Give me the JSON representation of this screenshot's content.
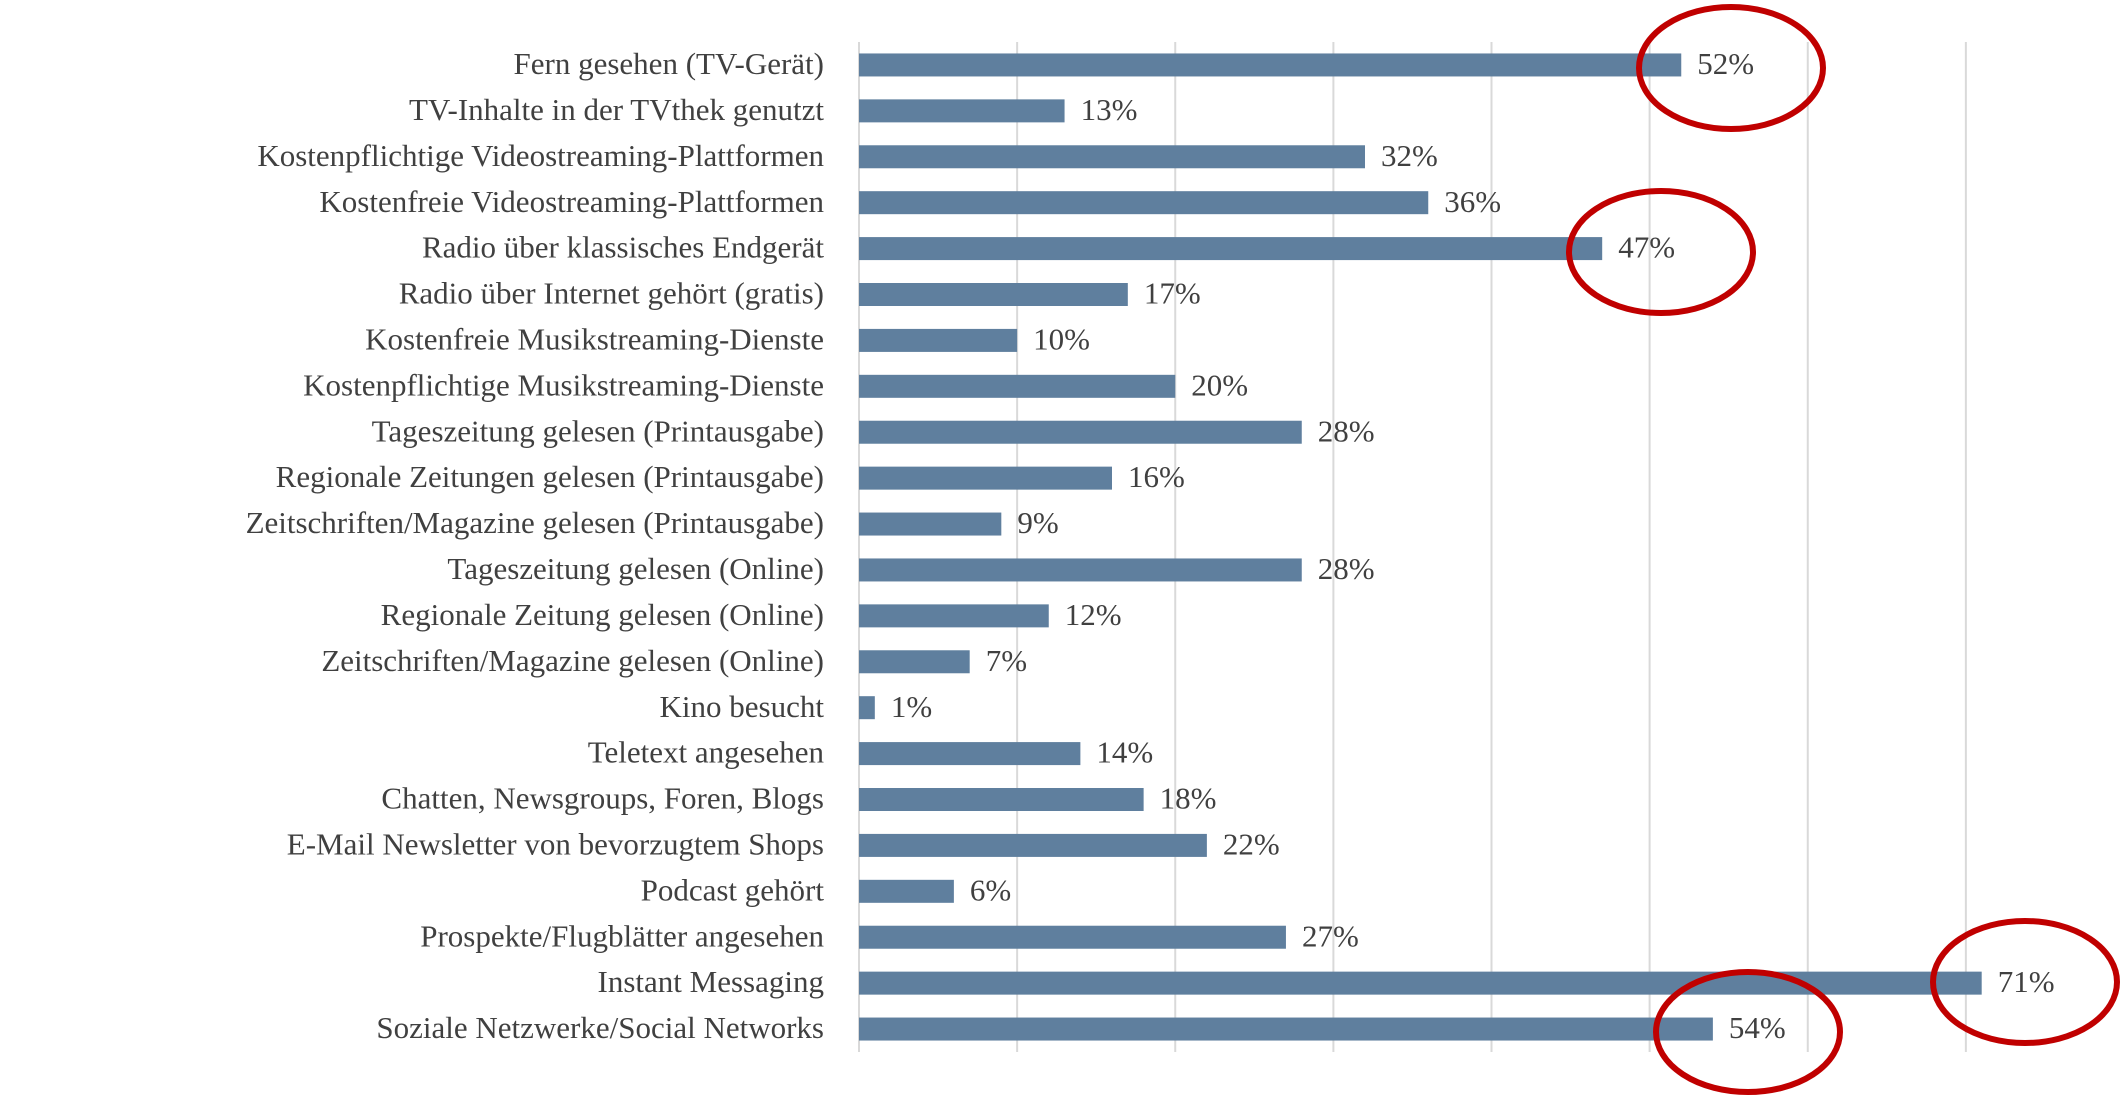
{
  "chart_data": {
    "type": "barh",
    "categories": [
      "Fern gesehen (TV-Gerät)",
      "TV-Inhalte in der TVthek genutzt",
      "Kostenpflichtige Videostreaming-Plattformen",
      "Kostenfreie Videostreaming-Plattformen",
      "Radio über klassisches Endgerät",
      "Radio über Internet gehört (gratis)",
      "Kostenfreie Musikstreaming-Dienste",
      "Kostenpflichtige Musikstreaming-Dienste",
      "Tageszeitung gelesen (Printausgabe)",
      "Regionale Zeitungen gelesen (Printausgabe)",
      "Zeitschriften/Magazine gelesen (Printausgabe)",
      "Tageszeitung gelesen (Online)",
      "Regionale Zeitung gelesen (Online)",
      "Zeitschriften/Magazine gelesen (Online)",
      "Kino besucht",
      "Teletext angesehen",
      "Chatten, Newsgroups, Foren, Blogs",
      "E-Mail Newsletter von bevorzugtem Shops",
      "Podcast gehört",
      "Prospekte/Flugblätter angesehen",
      "Instant Messaging",
      "Soziale Netzwerke/Social Networks"
    ],
    "values": [
      52,
      13,
      32,
      36,
      47,
      17,
      10,
      20,
      28,
      16,
      9,
      28,
      12,
      7,
      1,
      14,
      18,
      22,
      6,
      27,
      71,
      54
    ],
    "value_labels": [
      "52%",
      "13%",
      "32%",
      "36%",
      "47%",
      "17%",
      "10%",
      "20%",
      "28%",
      "16%",
      "9%",
      "28%",
      "12%",
      "7%",
      "1%",
      "14%",
      "18%",
      "22%",
      "6%",
      "27%",
      "71%",
      "54%"
    ],
    "color": "#5f7f9e",
    "xlim": [
      0,
      80
    ],
    "xticks": [
      0,
      10,
      20,
      30,
      40,
      50,
      60,
      70
    ],
    "grid": true
  }
}
